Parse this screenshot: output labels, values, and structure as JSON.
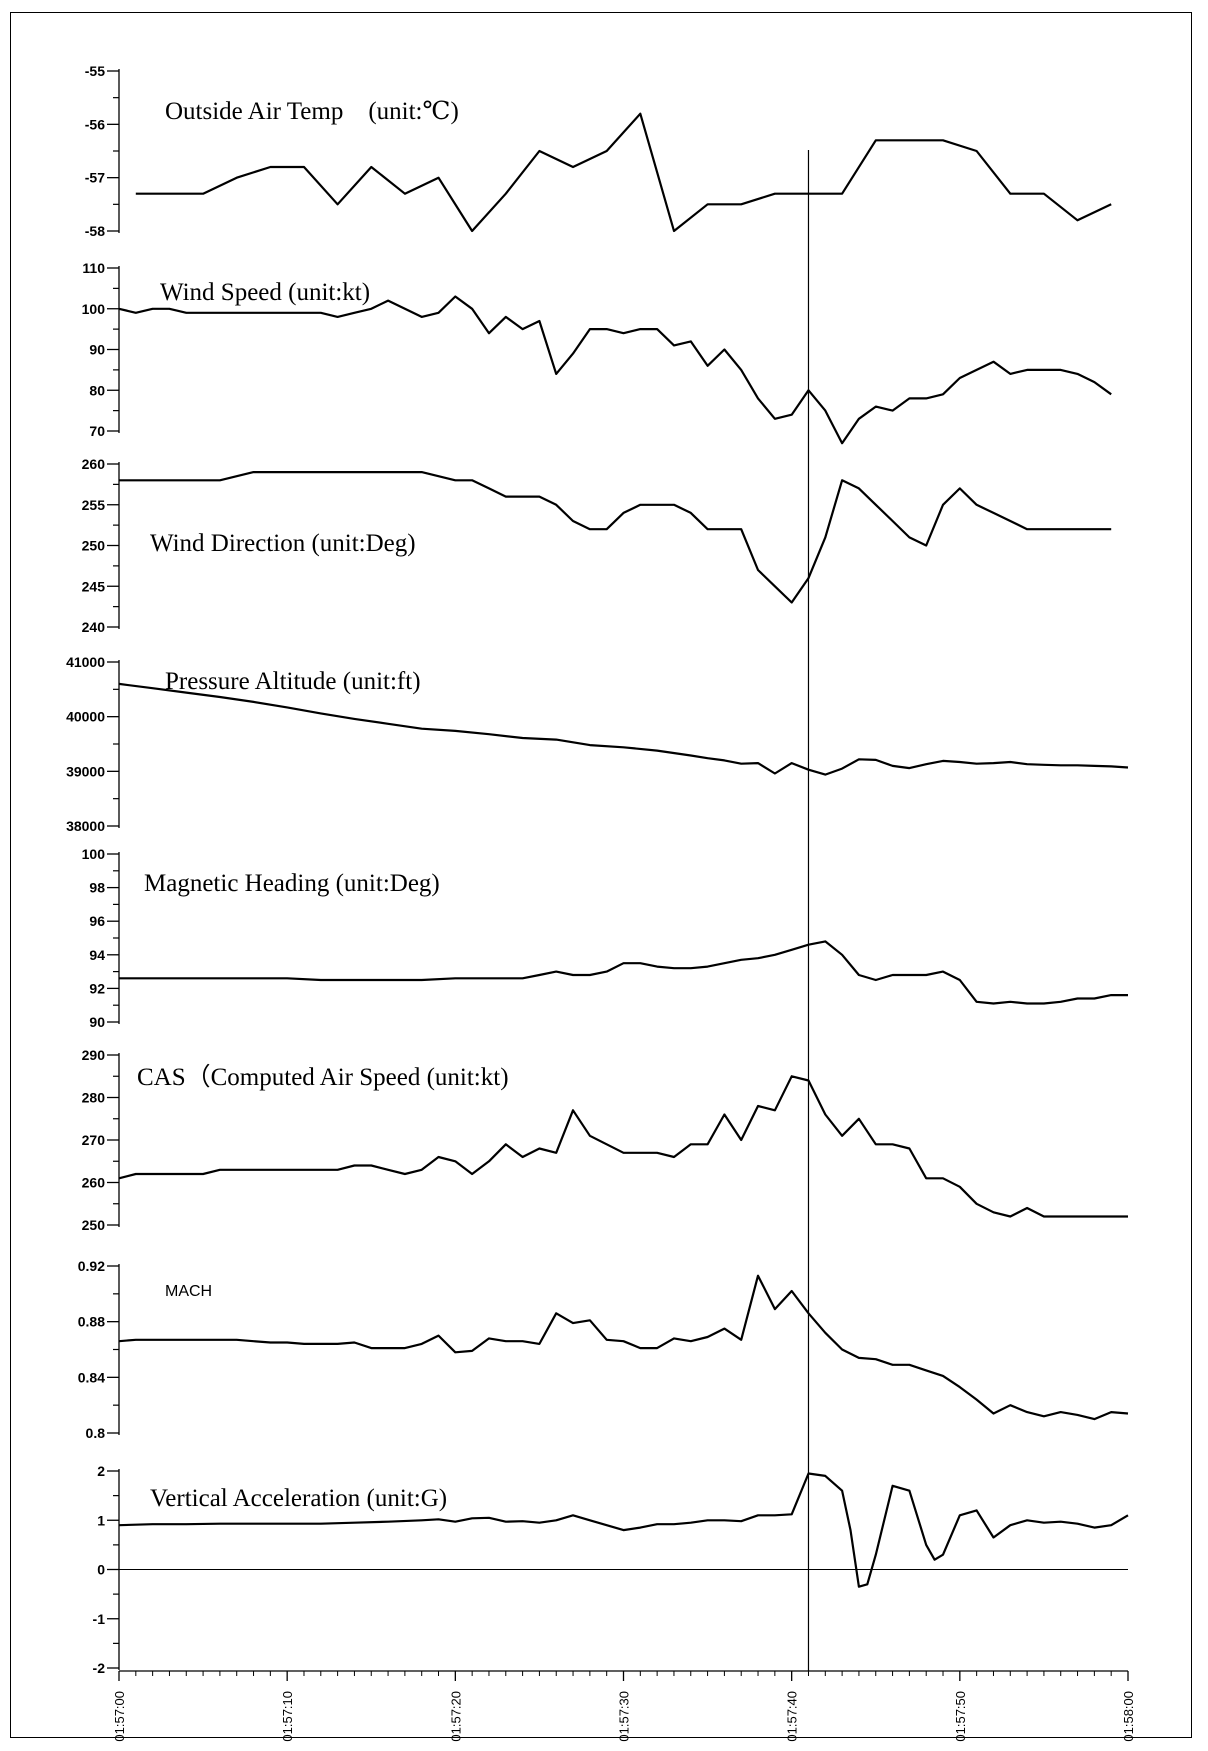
{
  "chart_data": [
    {
      "type": "line",
      "title": "Outside Air Temp　(unit:℃)",
      "ylim": [
        -58,
        -55
      ],
      "yticks": [
        -55,
        -56,
        -57,
        -58
      ],
      "x": [
        1,
        3,
        5,
        7,
        9,
        11,
        13,
        15,
        17,
        19,
        21,
        23,
        25,
        27,
        29,
        31,
        33,
        35,
        37,
        39,
        41,
        43,
        45,
        47,
        49,
        51,
        53,
        55,
        57,
        59
      ],
      "values": [
        -57.3,
        -57.3,
        -57.3,
        -57.0,
        -56.8,
        -56.8,
        -57.5,
        -56.8,
        -57.3,
        -57.0,
        -58.0,
        -57.3,
        -56.5,
        -56.8,
        -56.5,
        -55.8,
        -58.0,
        -57.5,
        -57.5,
        -57.3,
        -57.3,
        -57.3,
        -56.3,
        -56.3,
        -56.3,
        -56.5,
        -57.3,
        -57.3,
        -57.8,
        -57.5
      ]
    },
    {
      "type": "line",
      "title": "Wind Speed (unit:kt)",
      "ylim": [
        70,
        110
      ],
      "yticks": [
        110,
        100,
        90,
        80,
        70
      ],
      "x": [
        0,
        1,
        2,
        3,
        4,
        5,
        6,
        7,
        8,
        9,
        10,
        11,
        12,
        13,
        14,
        15,
        16,
        17,
        18,
        19,
        20,
        21,
        22,
        23,
        24,
        25,
        26,
        27,
        28,
        29,
        30,
        31,
        32,
        33,
        34,
        35,
        36,
        37,
        38,
        39,
        40,
        41,
        42,
        43,
        44,
        45,
        46,
        47,
        48,
        49,
        50,
        51,
        52,
        53,
        54,
        55,
        56,
        57,
        58,
        59
      ],
      "values": [
        100,
        99,
        100,
        100,
        99,
        99,
        99,
        99,
        99,
        99,
        99,
        99,
        99,
        98,
        99,
        100,
        102,
        100,
        98,
        99,
        103,
        100,
        94,
        98,
        95,
        97,
        84,
        89,
        95,
        95,
        94,
        95,
        95,
        91,
        92,
        86,
        90,
        85,
        78,
        73,
        74,
        80,
        75,
        67,
        73,
        76,
        75,
        78,
        78,
        79,
        83,
        85,
        87,
        84,
        85,
        85,
        85,
        84,
        82,
        79
      ]
    },
    {
      "type": "line",
      "title": "Wind Direction (unit:Deg)",
      "ylim": [
        240,
        260
      ],
      "yticks": [
        260,
        255,
        250,
        245,
        240
      ],
      "x": [
        0,
        2,
        4,
        6,
        8,
        10,
        12,
        14,
        16,
        18,
        20,
        21,
        22,
        23,
        24,
        25,
        26,
        27,
        28,
        29,
        30,
        31,
        32,
        33,
        34,
        35,
        36,
        37,
        38,
        39,
        40,
        41,
        42,
        43,
        44,
        45,
        46,
        47,
        48,
        49,
        50,
        51,
        52,
        53,
        54,
        55,
        56,
        57,
        58,
        59
      ],
      "values": [
        258,
        258,
        258,
        258,
        259,
        259,
        259,
        259,
        259,
        259,
        258,
        258,
        257,
        256,
        256,
        256,
        255,
        253,
        252,
        252,
        254,
        255,
        255,
        255,
        254,
        252,
        252,
        252,
        247,
        245,
        243,
        246,
        251,
        258,
        257,
        255,
        253,
        251,
        250,
        255,
        257,
        255,
        254,
        253,
        252,
        252,
        252,
        252,
        252,
        252
      ]
    },
    {
      "type": "line",
      "title": "Pressure Altitude (unit:ft)",
      "ylim": [
        38000,
        41000
      ],
      "yticks": [
        41000,
        40000,
        39000,
        38000
      ],
      "x": [
        0,
        2,
        4,
        6,
        8,
        10,
        12,
        14,
        16,
        18,
        20,
        22,
        24,
        26,
        28,
        30,
        32,
        34,
        35,
        36,
        37,
        38,
        39,
        40,
        41,
        42,
        43,
        44,
        45,
        46,
        47,
        48,
        49,
        50,
        51,
        52,
        53,
        54,
        55,
        56,
        57,
        58,
        59,
        60
      ],
      "values": [
        40600,
        40520,
        40440,
        40360,
        40270,
        40170,
        40060,
        39960,
        39870,
        39780,
        39740,
        39680,
        39610,
        39580,
        39480,
        39440,
        39380,
        39290,
        39240,
        39200,
        39140,
        39150,
        38960,
        39150,
        39030,
        38940,
        39050,
        39220,
        39210,
        39100,
        39060,
        39130,
        39190,
        39170,
        39140,
        39150,
        39170,
        39130,
        39120,
        39110,
        39110,
        39100,
        39090,
        39070
      ]
    },
    {
      "type": "line",
      "title": "Magnetic Heading (unit:Deg)",
      "ylim": [
        90,
        100
      ],
      "yticks": [
        100,
        98,
        96,
        94,
        92,
        90
      ],
      "x": [
        0,
        2,
        4,
        6,
        8,
        10,
        12,
        14,
        16,
        18,
        20,
        22,
        24,
        25,
        26,
        27,
        28,
        29,
        30,
        31,
        32,
        33,
        34,
        35,
        36,
        37,
        38,
        39,
        40,
        41,
        42,
        43,
        44,
        45,
        46,
        47,
        48,
        49,
        50,
        51,
        52,
        53,
        54,
        55,
        56,
        57,
        58,
        59,
        60
      ],
      "values": [
        92.6,
        92.6,
        92.6,
        92.6,
        92.6,
        92.6,
        92.5,
        92.5,
        92.5,
        92.5,
        92.6,
        92.6,
        92.6,
        92.8,
        93.0,
        92.8,
        92.8,
        93.0,
        93.5,
        93.5,
        93.3,
        93.2,
        93.2,
        93.3,
        93.5,
        93.7,
        93.8,
        94.0,
        94.3,
        94.6,
        94.8,
        94.0,
        92.8,
        92.5,
        92.8,
        92.8,
        92.8,
        93.0,
        92.5,
        91.2,
        91.1,
        91.2,
        91.1,
        91.1,
        91.2,
        91.4,
        91.4,
        91.6,
        91.6
      ]
    },
    {
      "type": "line",
      "title": "CAS（Computed Air Speed (unit:kt)",
      "ylim": [
        250,
        290
      ],
      "yticks": [
        290,
        280,
        270,
        260,
        250
      ],
      "x": [
        0,
        1,
        2,
        3,
        4,
        5,
        6,
        7,
        8,
        9,
        10,
        11,
        12,
        13,
        14,
        15,
        16,
        17,
        18,
        19,
        20,
        21,
        22,
        23,
        24,
        25,
        26,
        27,
        28,
        29,
        30,
        31,
        32,
        33,
        34,
        35,
        36,
        37,
        38,
        39,
        40,
        41,
        42,
        43,
        44,
        45,
        46,
        47,
        48,
        49,
        50,
        51,
        52,
        53,
        54,
        55,
        56,
        57,
        58,
        59,
        60
      ],
      "values": [
        261,
        262,
        262,
        262,
        262,
        262,
        263,
        263,
        263,
        263,
        263,
        263,
        263,
        263,
        264,
        264,
        263,
        262,
        263,
        266,
        265,
        262,
        265,
        269,
        266,
        268,
        267,
        277,
        271,
        269,
        267,
        267,
        267,
        266,
        269,
        269,
        276,
        270,
        278,
        277,
        285,
        284,
        276,
        271,
        275,
        269,
        269,
        268,
        261,
        261,
        259,
        255,
        253,
        252,
        254,
        252,
        252,
        252,
        252,
        252,
        252
      ]
    },
    {
      "type": "line",
      "title": "MACH",
      "ylim": [
        0.8,
        0.92
      ],
      "yticks": [
        0.92,
        0.88,
        0.84,
        0.8
      ],
      "x": [
        0,
        1,
        2,
        3,
        4,
        5,
        6,
        7,
        8,
        9,
        10,
        11,
        12,
        13,
        14,
        15,
        16,
        17,
        18,
        19,
        20,
        21,
        22,
        23,
        24,
        25,
        26,
        27,
        28,
        29,
        30,
        31,
        32,
        33,
        34,
        35,
        36,
        37,
        38,
        39,
        40,
        41,
        42,
        43,
        44,
        45,
        46,
        47,
        48,
        49,
        50,
        51,
        52,
        53,
        54,
        55,
        56,
        57,
        58,
        59,
        60
      ],
      "values": [
        0.866,
        0.867,
        0.867,
        0.867,
        0.867,
        0.867,
        0.867,
        0.867,
        0.866,
        0.865,
        0.865,
        0.864,
        0.864,
        0.864,
        0.865,
        0.861,
        0.861,
        0.861,
        0.864,
        0.87,
        0.858,
        0.859,
        0.868,
        0.866,
        0.866,
        0.864,
        0.886,
        0.879,
        0.881,
        0.867,
        0.866,
        0.861,
        0.861,
        0.868,
        0.866,
        0.869,
        0.875,
        0.867,
        0.913,
        0.889,
        0.902,
        0.886,
        0.872,
        0.86,
        0.854,
        0.853,
        0.849,
        0.849,
        0.845,
        0.841,
        0.833,
        0.824,
        0.814,
        0.82,
        0.815,
        0.812,
        0.815,
        0.813,
        0.81,
        0.815,
        0.814
      ]
    },
    {
      "type": "line",
      "title": "Vertical Acceleration (unit:G)",
      "ylim": [
        -2,
        2
      ],
      "yticks": [
        2,
        1,
        0,
        -1,
        -2
      ],
      "x": [
        0,
        2,
        4,
        6,
        8,
        10,
        12,
        14,
        16,
        18,
        19,
        20,
        21,
        22,
        23,
        24,
        25,
        26,
        27,
        28,
        29,
        30,
        31,
        32,
        33,
        34,
        35,
        36,
        37,
        38,
        39,
        40,
        41,
        42,
        43,
        43.5,
        44,
        44.5,
        45,
        46,
        47,
        48,
        48.5,
        49,
        50,
        51,
        52,
        53,
        54,
        55,
        56,
        57,
        58,
        59,
        60
      ],
      "values": [
        0.9,
        0.92,
        0.92,
        0.93,
        0.93,
        0.93,
        0.93,
        0.95,
        0.97,
        1.0,
        1.02,
        0.97,
        1.04,
        1.05,
        0.97,
        0.98,
        0.95,
        1.0,
        1.1,
        1.0,
        0.9,
        0.8,
        0.85,
        0.92,
        0.92,
        0.95,
        1.0,
        1.0,
        0.98,
        1.1,
        1.1,
        1.12,
        1.95,
        1.9,
        1.6,
        0.8,
        -0.35,
        -0.3,
        0.3,
        1.7,
        1.6,
        0.5,
        0.2,
        0.3,
        1.1,
        1.2,
        0.65,
        0.9,
        1.0,
        0.95,
        0.97,
        0.93,
        0.85,
        0.9,
        1.1
      ]
    }
  ],
  "x_axis": {
    "ticks": [
      "01:57:00",
      "01:57:10",
      "01:57:20",
      "01:57:30",
      "01:57:40",
      "01:57:50",
      "01:58:00"
    ],
    "range": [
      "01:57:00",
      "01:58:00"
    ]
  },
  "marker_time": "01:57:41"
}
